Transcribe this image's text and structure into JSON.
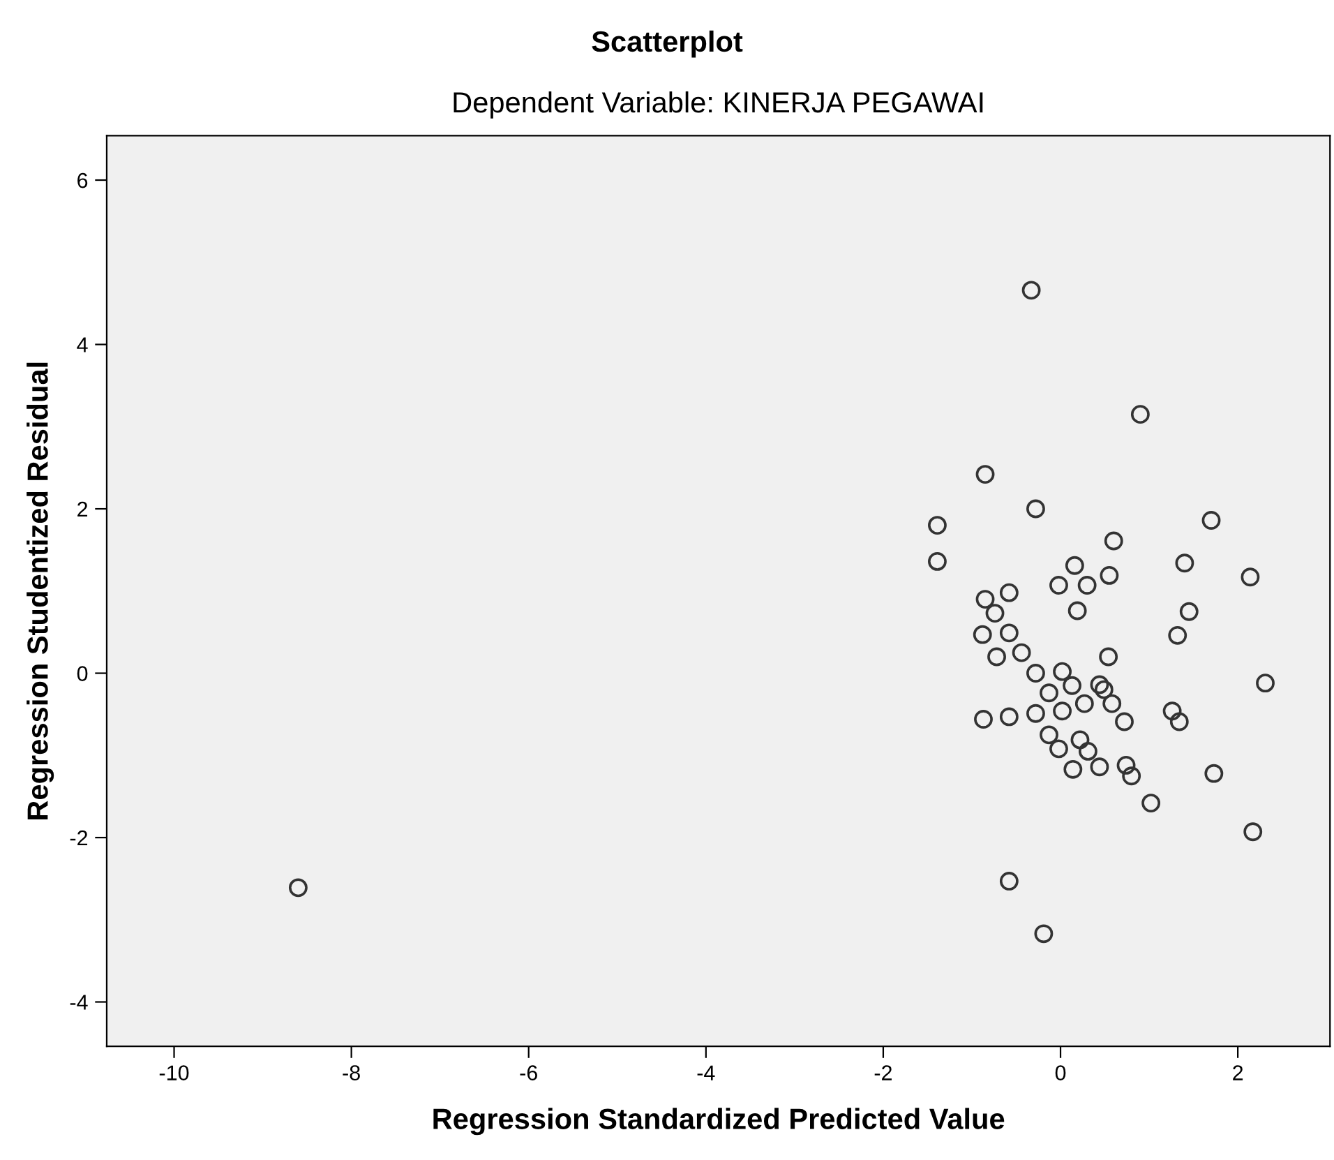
{
  "chart_data": {
    "type": "scatter",
    "title": "Scatterplot",
    "subtitle": "Dependent Variable: KINERJA PEGAWAI",
    "xlabel": "Regression Standardized Predicted Value",
    "ylabel": "Regression Studentized Residual",
    "x": [
      -8.6,
      -0.33,
      0.9,
      -0.85,
      -0.28,
      -1.39,
      -1.39,
      1.7,
      0.6,
      0.16,
      1.4,
      2.14,
      0.55,
      -0.02,
      0.3,
      -0.58,
      -0.85,
      -0.74,
      0.19,
      1.45,
      -0.88,
      -0.58,
      1.32,
      -0.72,
      -0.44,
      0.54,
      -0.28,
      0.02,
      0.13,
      -0.13,
      0.44,
      0.49,
      0.58,
      0.27,
      0.02,
      -0.28,
      -0.58,
      -0.87,
      0.72,
      1.26,
      1.34,
      2.31,
      -0.13,
      -0.02,
      0.22,
      0.31,
      0.44,
      0.14,
      0.74,
      0.8,
      1.73,
      1.02,
      2.17,
      -0.58,
      -0.19
    ],
    "values": [
      -2.61,
      4.66,
      3.15,
      2.42,
      2.0,
      1.8,
      1.36,
      1.86,
      1.61,
      1.31,
      1.34,
      1.17,
      1.19,
      1.07,
      1.07,
      0.98,
      0.9,
      0.73,
      0.76,
      0.75,
      0.47,
      0.49,
      0.46,
      0.2,
      0.25,
      0.2,
      0.0,
      0.02,
      -0.15,
      -0.24,
      -0.14,
      -0.2,
      -0.37,
      -0.37,
      -0.46,
      -0.49,
      -0.53,
      -0.56,
      -0.59,
      -0.46,
      -0.59,
      -0.12,
      -0.75,
      -0.92,
      -0.81,
      -0.95,
      -1.14,
      -1.17,
      -1.12,
      -1.25,
      -1.22,
      -1.58,
      -1.93,
      -2.53,
      -3.17
    ],
    "color": "#333333",
    "marker": "circle",
    "xlim": [
      -10.76,
      3.04
    ],
    "xticks": [
      -10,
      -8,
      -6,
      -4,
      -2,
      0,
      2
    ],
    "ylim": [
      -4.54,
      6.54
    ],
    "yticks": [
      -4,
      -2,
      0,
      2,
      4,
      6
    ],
    "grid": false,
    "legend": false
  }
}
